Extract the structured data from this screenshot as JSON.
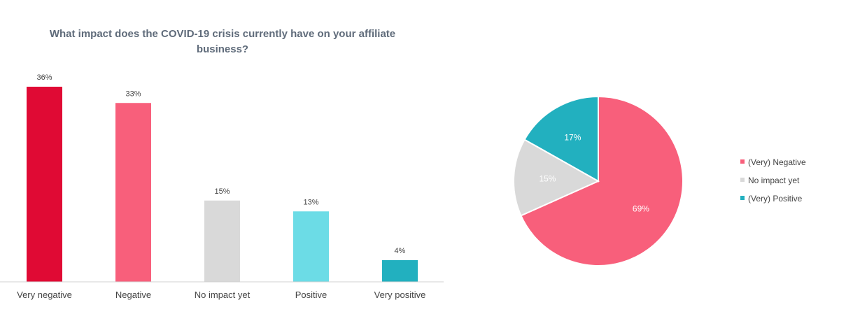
{
  "chart_data": [
    {
      "type": "bar",
      "title_lines": [
        "What impact does the COVID-19 crisis currently have on your affiliate",
        "business?"
      ],
      "categories": [
        "Very negative",
        "Negative",
        "No impact yet",
        "Positive",
        "Very positive"
      ],
      "values": [
        36,
        33,
        15,
        13,
        4
      ],
      "value_labels": [
        "36%",
        "33%",
        "15%",
        "13%",
        "4%"
      ],
      "colors": [
        "#e00a34",
        "#f85f7b",
        "#d9d9d9",
        "#6cdce6",
        "#22b0bf"
      ],
      "ylim": [
        0,
        36
      ],
      "grid": false,
      "xlabel": "",
      "ylabel": ""
    },
    {
      "type": "pie",
      "labels": [
        "(Very) Negative",
        "No impact yet",
        "(Very) Positive"
      ],
      "values": [
        69,
        15,
        17
      ],
      "value_labels": [
        "69%",
        "15%",
        "17%"
      ],
      "colors": [
        "#f85f7b",
        "#d9d9d9",
        "#22b0bf"
      ],
      "start": "top",
      "direction": "clockwise",
      "legend_position": "right"
    }
  ]
}
